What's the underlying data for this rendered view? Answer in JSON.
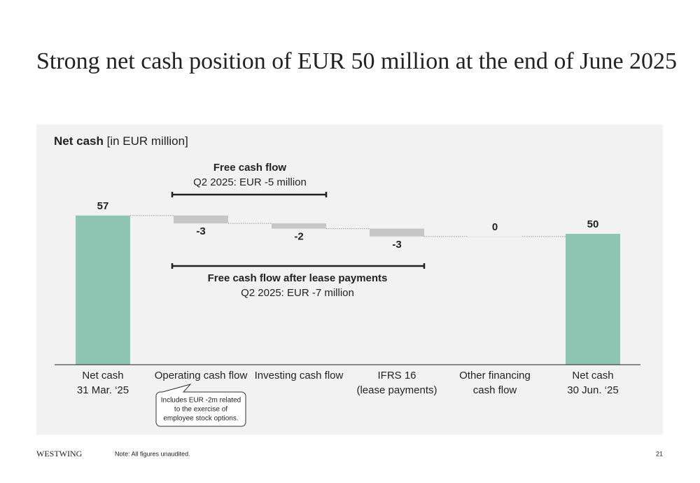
{
  "title": "Strong net cash position of EUR 50 million at the end of June 2025",
  "chart_data": {
    "type": "waterfall",
    "heading": "Net cash",
    "unit": "[in EUR million]",
    "categories": [
      [
        "Net cash",
        "31 Mar. ‘25"
      ],
      [
        "Operating cash flow"
      ],
      [
        "Investing cash flow"
      ],
      [
        "IFRS 16",
        "(lease payments)"
      ],
      [
        "Other financing",
        "cash flow"
      ],
      [
        "Net cash",
        "30 Jun. ‘25"
      ]
    ],
    "values": [
      57,
      -3,
      -2,
      -3,
      0,
      50
    ],
    "totals": [
      true,
      false,
      false,
      false,
      false,
      true
    ],
    "total_color": "#8ec5b3",
    "change_color": "#c6c6c6",
    "ylim": [
      0,
      65
    ],
    "annotations": [
      {
        "title": "Free cash flow",
        "text": "Q2 2025: EUR -5 million"
      },
      {
        "title": "Free cash flow after lease payments",
        "text": "Q2 2025: EUR -7 million"
      }
    ],
    "callout": [
      "Includes EUR -2m related",
      "to the exercise of",
      "employee stock options."
    ]
  },
  "footer": {
    "brand": "WESTWING",
    "note": "Note: All figures unaudited.",
    "page": "21"
  }
}
